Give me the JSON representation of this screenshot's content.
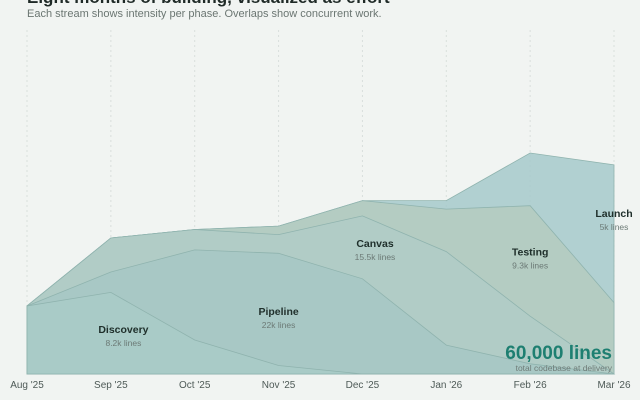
{
  "header": {
    "title": "Eight months of building, visualized as effort",
    "subtitle": "Each stream shows intensity per phase. Overlaps show concurrent work."
  },
  "total": {
    "value": "60,000 lines",
    "label": "total codebase at delivery"
  },
  "chart_data": {
    "type": "area",
    "title": "Eight months of building, visualized as effort",
    "subtitle": "Each stream shows intensity per phase. Overlaps show concurrent work.",
    "x": [
      "Aug '25",
      "Sep '25",
      "Oct '25",
      "Nov '25",
      "Dec '25",
      "Jan '26",
      "Feb '26",
      "Mar '26"
    ],
    "stacked": true,
    "grid": "vertical dashed at month ticks",
    "series": [
      {
        "name": "Discovery",
        "detail": "8.2k lines",
        "color": "#a9cbc7",
        "values": [
          0.4,
          0.48,
          0.2,
          0.05,
          0.0,
          0.0,
          0.0,
          0.0
        ]
      },
      {
        "name": "Pipeline",
        "detail": "22k lines",
        "color": "#a7c7c4",
        "values": [
          0.0,
          0.12,
          0.53,
          0.66,
          0.56,
          0.17,
          0.06,
          0.0
        ]
      },
      {
        "name": "Canvas",
        "detail": "15.5k lines",
        "color": "#b0cbc7",
        "values": [
          0.0,
          0.2,
          0.12,
          0.11,
          0.37,
          0.55,
          0.28,
          0.0
        ]
      },
      {
        "name": "Testing",
        "detail": "9.3k lines",
        "color": "#b5cbbf",
        "values": [
          0.0,
          0.0,
          0.0,
          0.05,
          0.09,
          0.25,
          0.65,
          0.42
        ]
      },
      {
        "name": "Launch",
        "detail": "5k lines",
        "color": "#a6c9cb",
        "values": [
          0.0,
          0.0,
          0.0,
          0.0,
          0.0,
          0.05,
          0.31,
          0.81
        ]
      }
    ]
  }
}
